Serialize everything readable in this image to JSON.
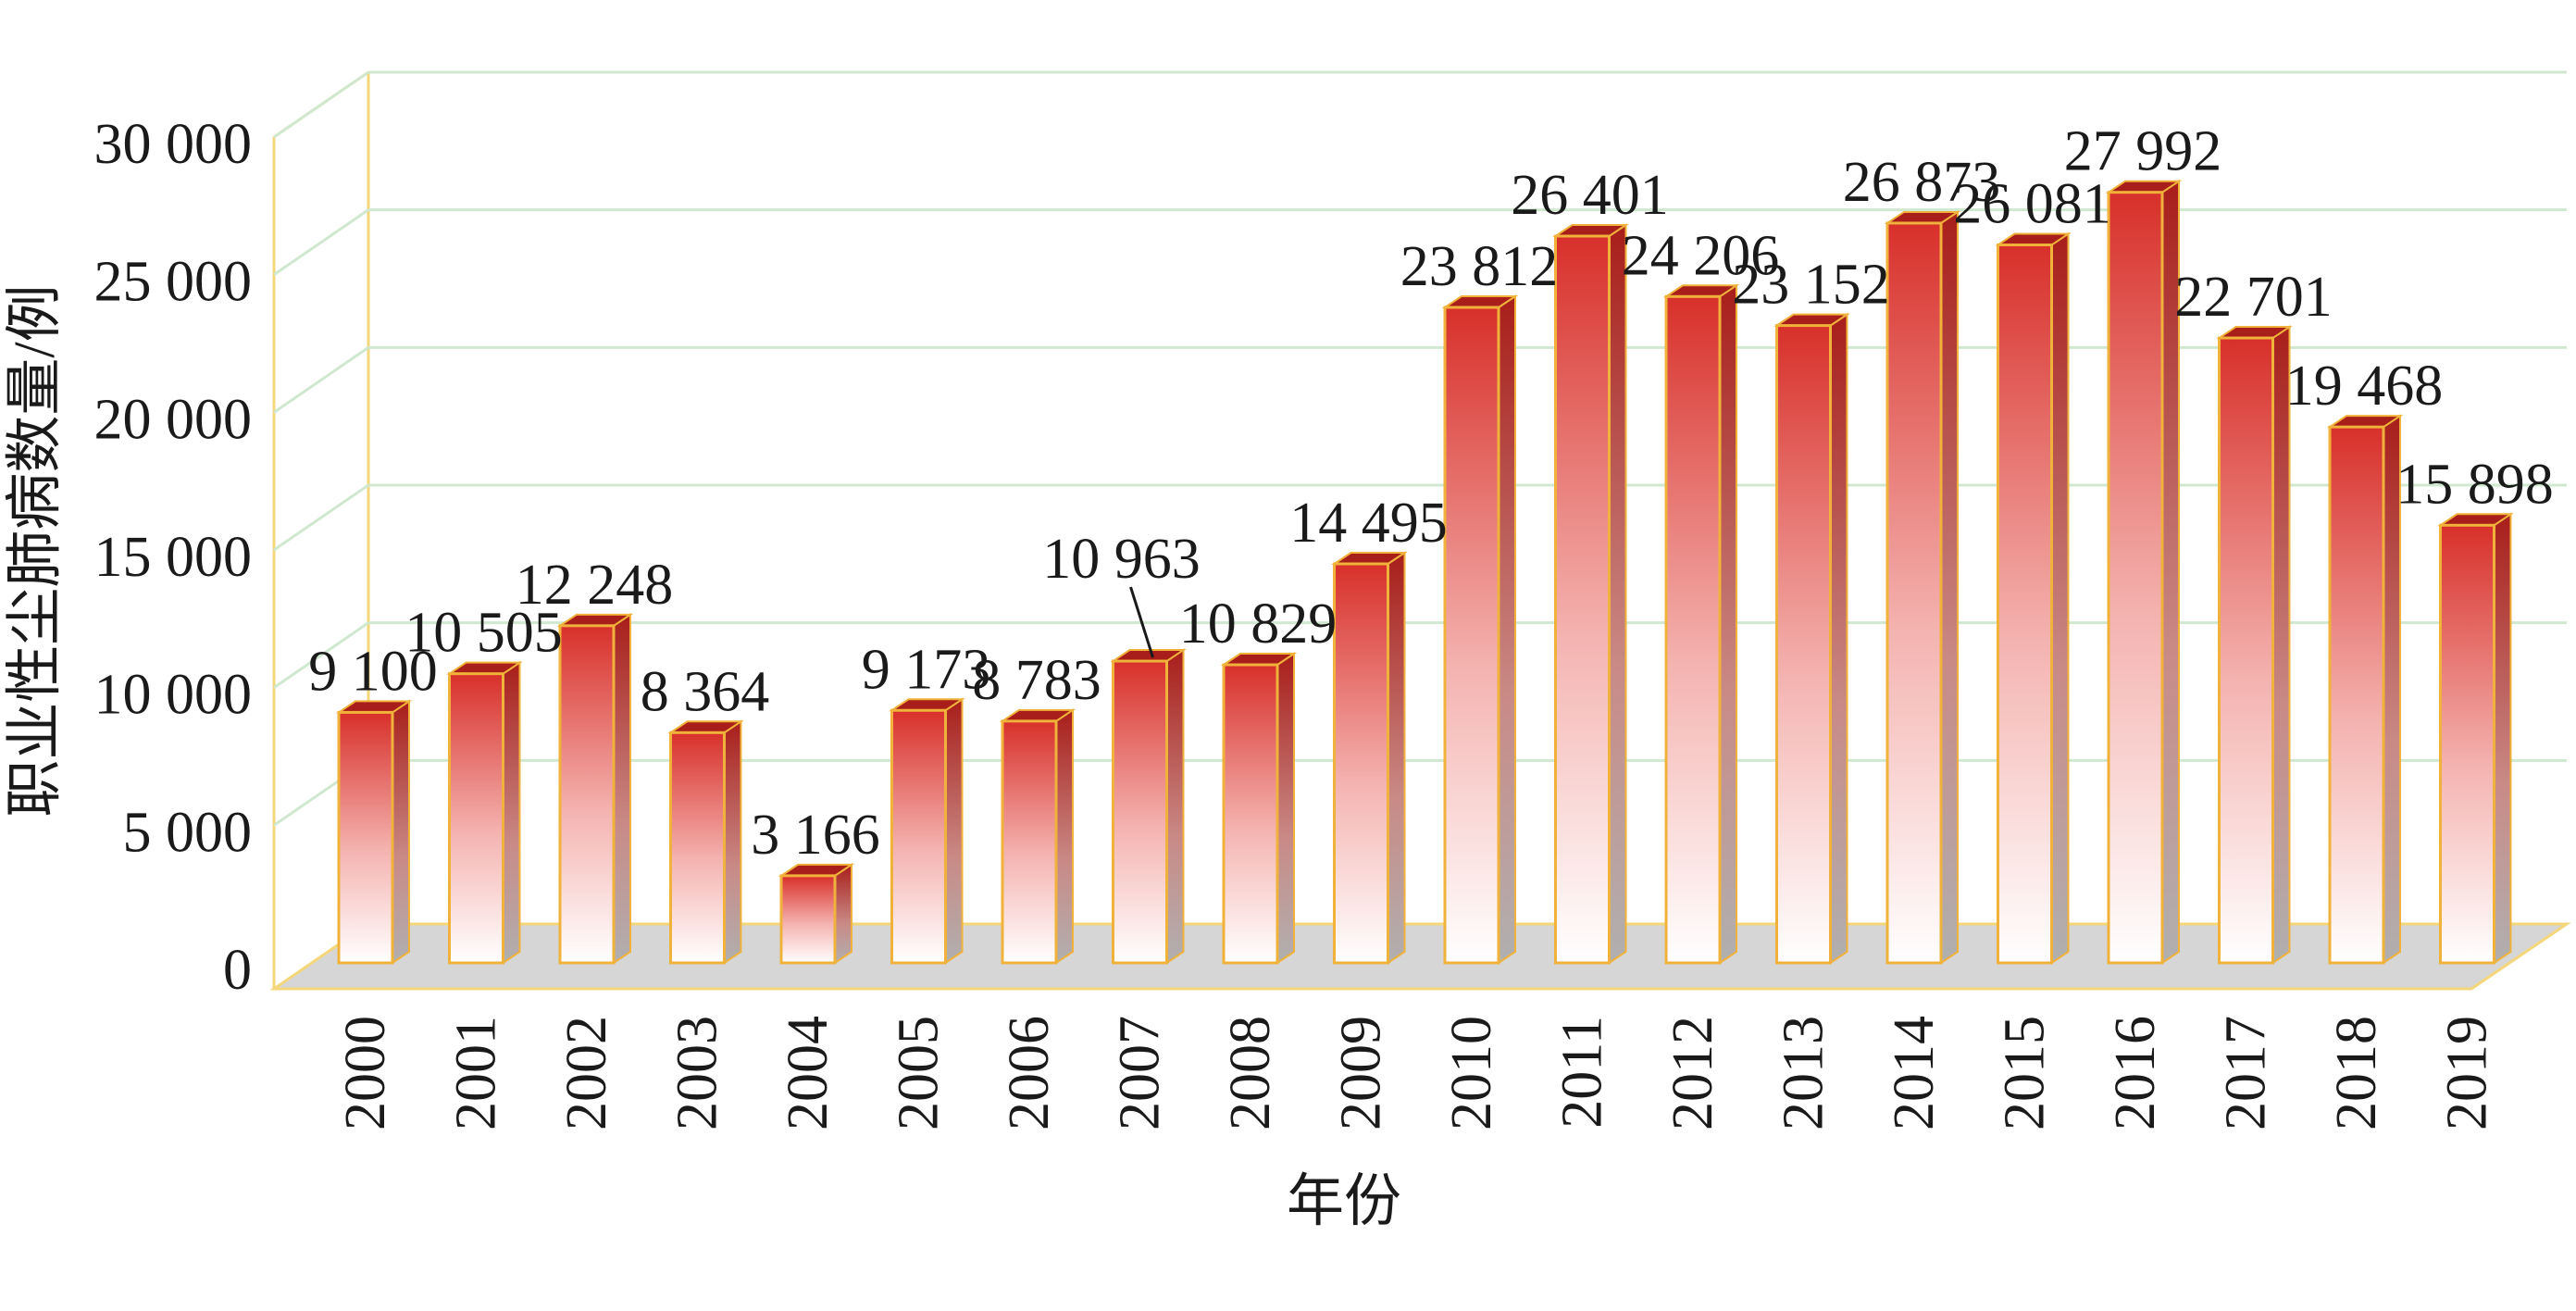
{
  "chart_data": {
    "type": "bar",
    "title": "",
    "xlabel": "年份",
    "ylabel": "职业性尘肺病数量/例",
    "ylim": [
      0,
      30000
    ],
    "yticks": [
      0,
      5000,
      10000,
      15000,
      20000,
      25000,
      30000
    ],
    "ytick_labels": [
      "0",
      "5 000",
      "10 000",
      "15 000",
      "20 000",
      "25 000",
      "30 000"
    ],
    "grid": true,
    "legend": "none",
    "style": "3d-gradient-bar",
    "categories": [
      "2000",
      "2001",
      "2002",
      "2003",
      "2004",
      "2005",
      "2006",
      "2007",
      "2008",
      "2009",
      "2010",
      "2011",
      "2012",
      "2013",
      "2014",
      "2015",
      "2016",
      "2017",
      "2018",
      "2019"
    ],
    "values": [
      9100,
      10505,
      12248,
      8364,
      3166,
      9173,
      8783,
      10963,
      10829,
      14495,
      23812,
      26401,
      24206,
      23152,
      26873,
      26081,
      27992,
      22701,
      19468,
      15898
    ],
    "value_labels": [
      "9 100",
      "10 505",
      "12 248",
      "8 364",
      "3 166",
      "9 173",
      "8 783",
      "10 963",
      "10 829",
      "14 495",
      "23 812",
      "26 401",
      "24 206",
      "23 152",
      "26 873",
      "26 081",
      "27 992",
      "22 701",
      "19 468",
      "15 898"
    ],
    "colors": {
      "bar_top": "#d8302a",
      "bar_bottom": "#ffffff",
      "bar_side": "#a81e1a",
      "bar_edge": "#f0b23a",
      "floor": "#d6d6d6",
      "frame": "#f3d77a",
      "grid": "#cfe8cf"
    }
  }
}
